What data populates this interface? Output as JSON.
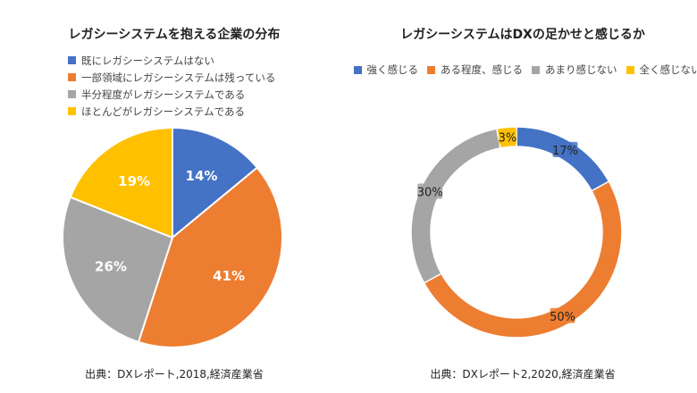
{
  "chart_data": [
    {
      "type": "pie",
      "title": "レガシーシステムを抱える企業の分布",
      "categories": [
        "既にレガシーシステムはない",
        "一部領域にレガシーシステムは残っている",
        "半分程度がレガシーシステムである",
        "ほとんどがレガシーシステムである"
      ],
      "values": [
        14,
        41,
        26,
        19
      ],
      "labels": [
        "14%",
        "41%",
        "26%",
        "19%"
      ],
      "colors": [
        "#4472C4",
        "#ED7D31",
        "#A5A5A5",
        "#FFC000"
      ],
      "legend_position": "top-left",
      "source": "出典：DXレポート,2018,経済産業省"
    },
    {
      "type": "donut",
      "title": "レガシーシステムはDXの足かせと感じるか",
      "categories": [
        "強く感じる",
        "ある程度、感じる",
        "あまり感じない",
        "全く感じない"
      ],
      "values": [
        17,
        50,
        30,
        3
      ],
      "labels": [
        "17%",
        "50%",
        "30%",
        "3%"
      ],
      "colors": [
        "#4472C4",
        "#ED7D31",
        "#A5A5A5",
        "#FFC000"
      ],
      "legend_position": "top",
      "source": "出典：DXレポート2,2020,経済産業省"
    }
  ]
}
